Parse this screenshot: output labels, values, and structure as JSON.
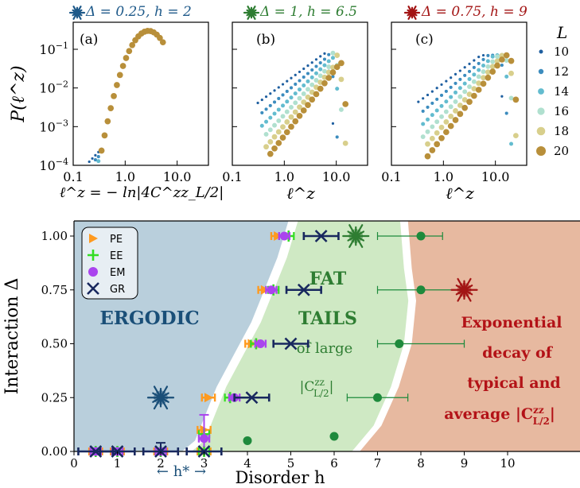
{
  "chart_data": [
    {
      "type": "scatter",
      "panel": "(a)",
      "title": "Δ = 0.25, h = 2",
      "title_color": "#1f5a8a",
      "xlabel": "ℓ^z = − ln|4C^zz_L/2|",
      "ylabel": "P(ℓ^z)",
      "xscale": "log",
      "yscale": "log",
      "xlim": [
        0.1,
        30
      ],
      "ylim": [
        0.0001,
        0.5
      ],
      "xticks": [
        "0.1",
        "1.0",
        "10.0"
      ],
      "yticks": [
        "10^-4",
        "10^-3",
        "10^-2",
        "10^-1"
      ],
      "shape": "gaussian",
      "peak_x": 2.8,
      "peak_y": 0.3
    },
    {
      "type": "scatter",
      "panel": "(b)",
      "title": "Δ = 1, h = 6.5",
      "title_color": "#2e7d32",
      "xlabel": "ℓ^z",
      "xscale": "log",
      "yscale": "log",
      "xlim": [
        0.1,
        30
      ],
      "ylim": [
        0.0001,
        0.5
      ],
      "xticks": [
        "0.1",
        "1.0",
        "10.0"
      ],
      "shape": "fat-tail",
      "peak_x": 9.5,
      "peak_y": 0.08
    },
    {
      "type": "scatter",
      "panel": "(c)",
      "title": "Δ = 0.75, h = 9",
      "title_color": "#a31515",
      "xlabel": "ℓ^z",
      "xscale": "log",
      "yscale": "log",
      "xlim": [
        0.1,
        40
      ],
      "ylim": [
        0.0001,
        0.5
      ],
      "xticks": [
        "0.1",
        "1.0",
        "10.0"
      ],
      "shape": "fat-tail",
      "peak_x": 16,
      "peak_y": 0.07,
      "legend_title": "L",
      "legend": [
        {
          "label": "10",
          "color": "#1f5fa0"
        },
        {
          "label": "12",
          "color": "#3c8cbe"
        },
        {
          "label": "14",
          "color": "#63bccf"
        },
        {
          "label": "16",
          "color": "#b0e0cf"
        },
        {
          "label": "18",
          "color": "#d8cf8c"
        },
        {
          "label": "20",
          "color": "#b88f3a"
        }
      ]
    },
    {
      "type": "scatter",
      "title": "",
      "xlabel": "Disorder h",
      "ylabel": "Interaction Δ",
      "xlim": [
        0,
        12
      ],
      "ylim": [
        0,
        1.1
      ],
      "xticks": [
        0,
        1,
        2,
        3,
        4,
        5,
        6,
        7,
        8,
        9,
        10
      ],
      "yticks": [
        "0.00",
        "0.25",
        "0.50",
        "0.75",
        "1.00"
      ],
      "regions": [
        {
          "name": "ERGODIC",
          "color": "#b9cfdc"
        },
        {
          "name": "FAT TAILS of large |C^zz_L/2|",
          "color": "#cfe9c4"
        },
        {
          "name": "Exponential decay of typical and average |C^zz_L/2|",
          "color": "#e7b9a0"
        }
      ],
      "series": [
        {
          "name": "PE",
          "color": "#ff9a1f",
          "marker": "triangle-right",
          "points": [
            {
              "x": 0.5,
              "y": 0
            },
            {
              "x": 1,
              "y": 0
            },
            {
              "x": 2,
              "y": 0
            },
            {
              "x": 3,
              "y": 0
            },
            {
              "x": 3,
              "y": 0.1
            },
            {
              "x": 3.1,
              "y": 0.25
            },
            {
              "x": 4.1,
              "y": 0.5
            },
            {
              "x": 4.4,
              "y": 0.75
            },
            {
              "x": 4.7,
              "y": 1.0
            }
          ]
        },
        {
          "name": "EE",
          "color": "#33dd22",
          "marker": "plus",
          "points": [
            {
              "x": 0.5,
              "y": 0
            },
            {
              "x": 1,
              "y": 0
            },
            {
              "x": 2,
              "y": 0
            },
            {
              "x": 3,
              "y": 0
            },
            {
              "x": 3,
              "y": 0.08
            },
            {
              "x": 3.6,
              "y": 0.25
            },
            {
              "x": 4.2,
              "y": 0.5
            },
            {
              "x": 4.6,
              "y": 0.75
            },
            {
              "x": 4.95,
              "y": 1.0
            }
          ]
        },
        {
          "name": "EM",
          "color": "#aa44ee",
          "marker": "circle",
          "points": [
            {
              "x": 0.5,
              "y": 0
            },
            {
              "x": 1,
              "y": 0
            },
            {
              "x": 2,
              "y": 0
            },
            {
              "x": 3,
              "y": 0.06
            },
            {
              "x": 3.7,
              "y": 0.25
            },
            {
              "x": 4.3,
              "y": 0.5
            },
            {
              "x": 4.55,
              "y": 0.75
            },
            {
              "x": 4.85,
              "y": 1.0
            }
          ]
        },
        {
          "name": "GR",
          "color": "#18285e",
          "marker": "x",
          "points": [
            {
              "x": 0.5,
              "y": 0
            },
            {
              "x": 1,
              "y": 0
            },
            {
              "x": 2,
              "y": 0
            },
            {
              "x": 3,
              "y": 0
            },
            {
              "x": 4.1,
              "y": 0.25
            },
            {
              "x": 5.0,
              "y": 0.5
            },
            {
              "x": 5.3,
              "y": 0.75
            },
            {
              "x": 5.7,
              "y": 1.0
            }
          ]
        },
        {
          "name": "",
          "color": "#1e8a3c",
          "marker": "dot",
          "points": [
            {
              "x": 4,
              "y": 0.05,
              "xerr": [
                4,
                4
              ]
            },
            {
              "x": 6,
              "y": 0.07,
              "xerr": [
                6,
                6
              ]
            },
            {
              "x": 7,
              "y": 0.25,
              "xerr": [
                6.3,
                7.7
              ]
            },
            {
              "x": 7.5,
              "y": 0.5,
              "xerr": [
                7,
                9
              ]
            },
            {
              "x": 8,
              "y": 0.75,
              "xerr": [
                7,
                8.9
              ]
            },
            {
              "x": 8,
              "y": 1.0,
              "xerr": [
                7,
                8.5
              ]
            }
          ]
        }
      ],
      "stars": [
        {
          "x": 2,
          "y": 0.25,
          "color": "#1a4f78"
        },
        {
          "x": 6.5,
          "y": 1.0,
          "color": "#2e7d32"
        },
        {
          "x": 9,
          "y": 0.75,
          "color": "#a31515"
        }
      ],
      "annotation": "← h* →"
    }
  ]
}
